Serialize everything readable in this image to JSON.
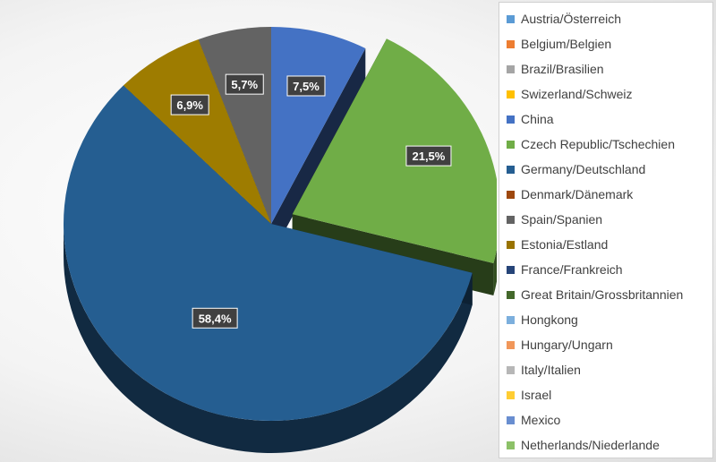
{
  "chart_data": {
    "type": "pie",
    "title": "",
    "slices": [
      {
        "label": "China",
        "value": 7.5,
        "display": "7,5%",
        "color": "#4472C4"
      },
      {
        "label": "Czech Republic/Tschechien",
        "value": 21.5,
        "display": "21,5%",
        "color": "#70AD47"
      },
      {
        "label": "Germany/Deutschland",
        "value": 58.4,
        "display": "58,4%",
        "color": "#255E91"
      },
      {
        "label": "Estonia/Estland",
        "value": 6.9,
        "display": "6,9%",
        "color": "#9E7C00"
      },
      {
        "label": "Spain/Spanien",
        "value": 5.7,
        "display": "5,7%",
        "color": "#636363"
      }
    ],
    "legend": {
      "position": "right",
      "entries": [
        {
          "label": "Austria/Österreich",
          "color": "#5B9BD5"
        },
        {
          "label": "Belgium/Belgien",
          "color": "#ED7D31"
        },
        {
          "label": "Brazil/Brasilien",
          "color": "#A5A5A5"
        },
        {
          "label": "Swizerland/Schweiz",
          "color": "#FFC000"
        },
        {
          "label": "China",
          "color": "#4472C4"
        },
        {
          "label": "Czech Republic/Tschechien",
          "color": "#70AD47"
        },
        {
          "label": "Germany/Deutschland",
          "color": "#255E91"
        },
        {
          "label": "Denmark/Dänemark",
          "color": "#9E480E"
        },
        {
          "label": "Spain/Spanien",
          "color": "#636363"
        },
        {
          "label": "Estonia/Estland",
          "color": "#997300"
        },
        {
          "label": "France/Frankreich",
          "color": "#264478"
        },
        {
          "label": "Great Britain/Grossbritannien",
          "color": "#43682B"
        },
        {
          "label": "Hongkong",
          "color": "#7CAFDD"
        },
        {
          "label": "Hungary/Ungarn",
          "color": "#F1975A"
        },
        {
          "label": "Italy/Italien",
          "color": "#B7B7B7"
        },
        {
          "label": "Israel",
          "color": "#FFCD33"
        },
        {
          "label": "Mexico",
          "color": "#698ED0"
        },
        {
          "label": "Netherlands/Niederlande",
          "color": "#8CC168"
        }
      ]
    }
  }
}
